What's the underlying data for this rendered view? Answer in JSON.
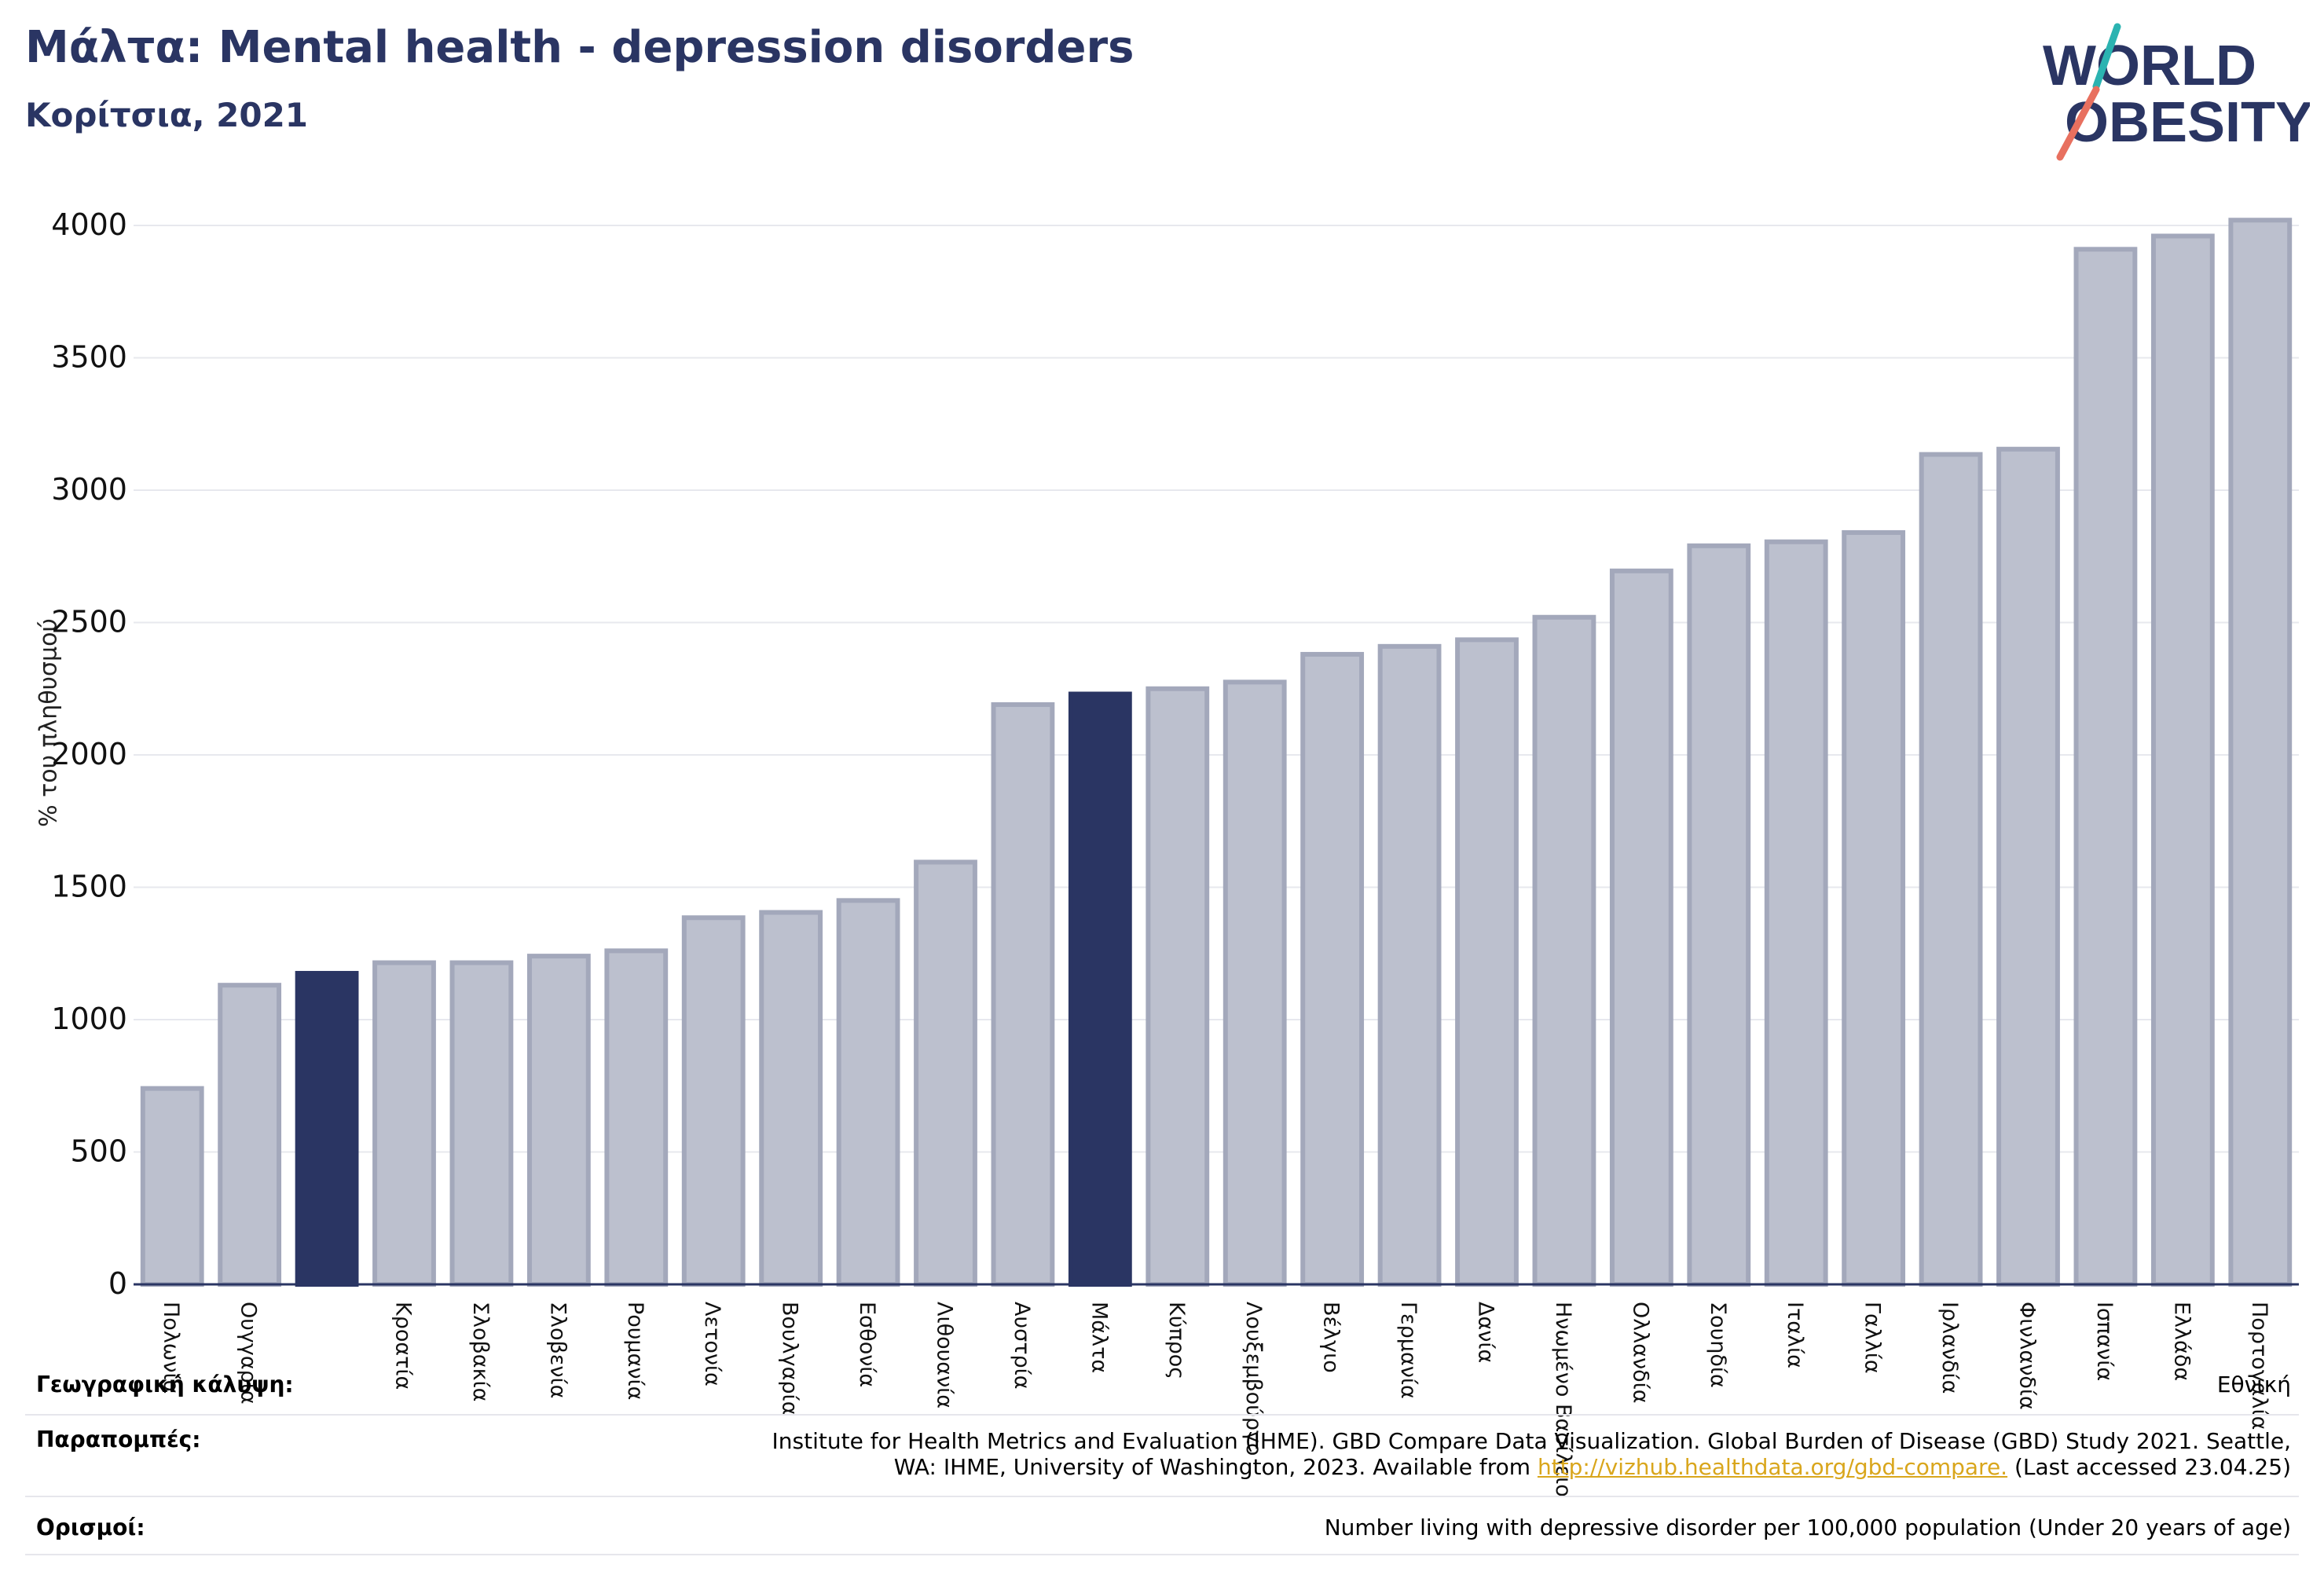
{
  "header": {
    "title": "Μάλτα: Mental health - depression disorders",
    "subtitle": "Κορίτσια, 2021"
  },
  "logo": {
    "line1": "WORLD",
    "line2": "OBESITY"
  },
  "colors": {
    "bar": "#bcc0ce",
    "bar_edge": "#a3a8bb",
    "highlight": "#2a3563",
    "grid": "#e7e8ee",
    "title": "#2a3563",
    "link": "#d9a61c"
  },
  "chart_data": {
    "type": "bar",
    "ylabel": "% του πληθυσμού",
    "ylim": [
      0,
      4000
    ],
    "yticks": [
      0,
      500,
      1000,
      1500,
      2000,
      2500,
      3000,
      3500,
      4000
    ],
    "grid": true,
    "categories": [
      "Πολωνία",
      "Ουγγαρία",
      "",
      "Κροατία",
      "Σλοβακία",
      "Σλοβενία",
      "Ρουμανία",
      "Λετονία",
      "Βουλγαρία",
      "Εσθονία",
      "Λιθουανία",
      "Αυστρία",
      "Μάλτα",
      "Κύπρος",
      "Λουξεμβούργο",
      "Βέλγιο",
      "Γερμανία",
      "Δανία",
      "Ηνωμένο Βασίλειο",
      "Ολλανδία",
      "Σουηδία",
      "Ιταλία",
      "Γαλλία",
      "Ιρλανδία",
      "Φινλανδία",
      "Ισπανία",
      "Ελλάδα",
      "Πορτογαλία"
    ],
    "values": [
      740,
      1130,
      1175,
      1215,
      1215,
      1240,
      1260,
      1385,
      1405,
      1450,
      1595,
      2190,
      2230,
      2250,
      2275,
      2380,
      2410,
      2435,
      2520,
      2695,
      2790,
      2805,
      2840,
      3135,
      3155,
      3910,
      3960,
      4020
    ],
    "highlight": [
      2,
      12
    ]
  },
  "footer": {
    "coverage_label": "Γεωγραφική κάλυψη:",
    "coverage_value": "Εθνική",
    "references_label": "Παραπομπές:",
    "references_line1": "Institute for Health Metrics and Evaluation (IHME). GBD Compare Data Visualization. Global Burden of Disease (GBD) Study 2021. Seattle,",
    "references_line2a": "WA: IHME, University of Washington, 2023. Available from ",
    "references_link": "http://vizhub.healthdata.org/gbd-compare.",
    "references_line2b": " (Last accessed 23.04.25)",
    "definitions_label": "Ορισμοί:",
    "definitions_value": "Number living with depressive disorder per 100,000 population (Under 20 years of age)"
  }
}
